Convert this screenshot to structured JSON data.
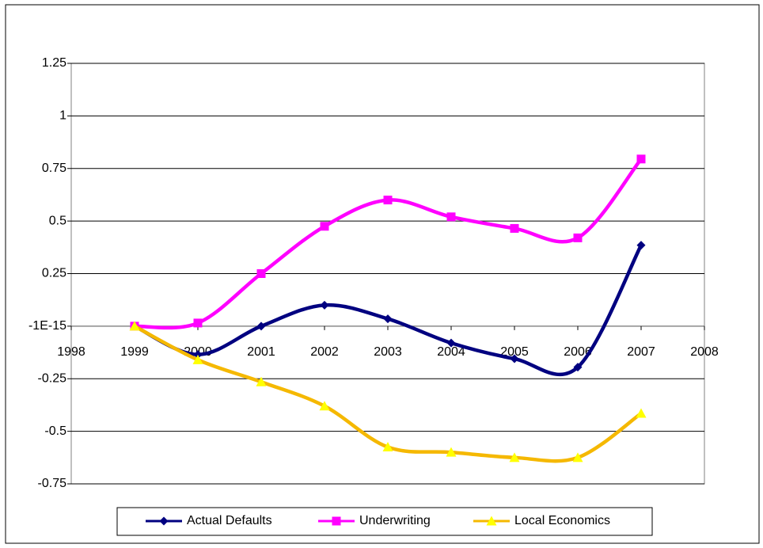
{
  "chart_data": {
    "type": "line",
    "x": [
      1999,
      2000,
      2001,
      2002,
      2003,
      2004,
      2005,
      2006,
      2007
    ],
    "series": [
      {
        "name": "Actual Defaults",
        "color": "#000080",
        "marker_color": "#000080",
        "marker": "diamond",
        "values": [
          0,
          -0.135,
          0,
          0.1,
          0.035,
          -0.08,
          -0.155,
          -0.195,
          0.385
        ]
      },
      {
        "name": "Underwriting",
        "color": "#ff00ff",
        "marker_color": "#ff00ff",
        "marker": "square",
        "values": [
          0,
          0.015,
          0.25,
          0.475,
          0.6,
          0.52,
          0.465,
          0.42,
          0.795
        ]
      },
      {
        "name": "Local Economics",
        "color": "#f5b800",
        "marker_color": "#ffff00",
        "marker": "triangle",
        "values": [
          0,
          -0.16,
          -0.265,
          -0.38,
          -0.575,
          -0.6,
          -0.625,
          -0.625,
          -0.415
        ]
      }
    ],
    "xlim": [
      1998,
      2008
    ],
    "xticks": [
      1998,
      1999,
      2000,
      2001,
      2002,
      2003,
      2004,
      2005,
      2006,
      2007,
      2008
    ],
    "ylim": [
      -0.75,
      1.25
    ],
    "yticks": [
      -0.75,
      -0.5,
      -0.25,
      {
        "value": -1e-15,
        "label": "-1E-15"
      },
      0.25,
      0.5,
      0.75,
      1,
      1.25
    ],
    "grid": true,
    "smooth": true,
    "legend": "bottom"
  }
}
